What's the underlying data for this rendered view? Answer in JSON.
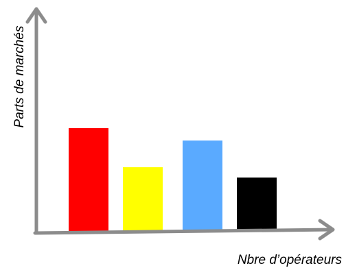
{
  "chart_data": {
    "type": "bar",
    "title": "",
    "xlabel": "Nbre d’opérateurs",
    "ylabel": "Parts de marchés",
    "categories": [
      "",
      "",
      "",
      ""
    ],
    "values": [
      5.0,
      3.1,
      4.4,
      2.6
    ],
    "colors": [
      "#ff0000",
      "#ffff00",
      "#5aaaff",
      "#000000"
    ],
    "ylim": [
      0,
      10
    ],
    "grid": false,
    "legend": "none",
    "axis_color": "#8c8c8c"
  }
}
